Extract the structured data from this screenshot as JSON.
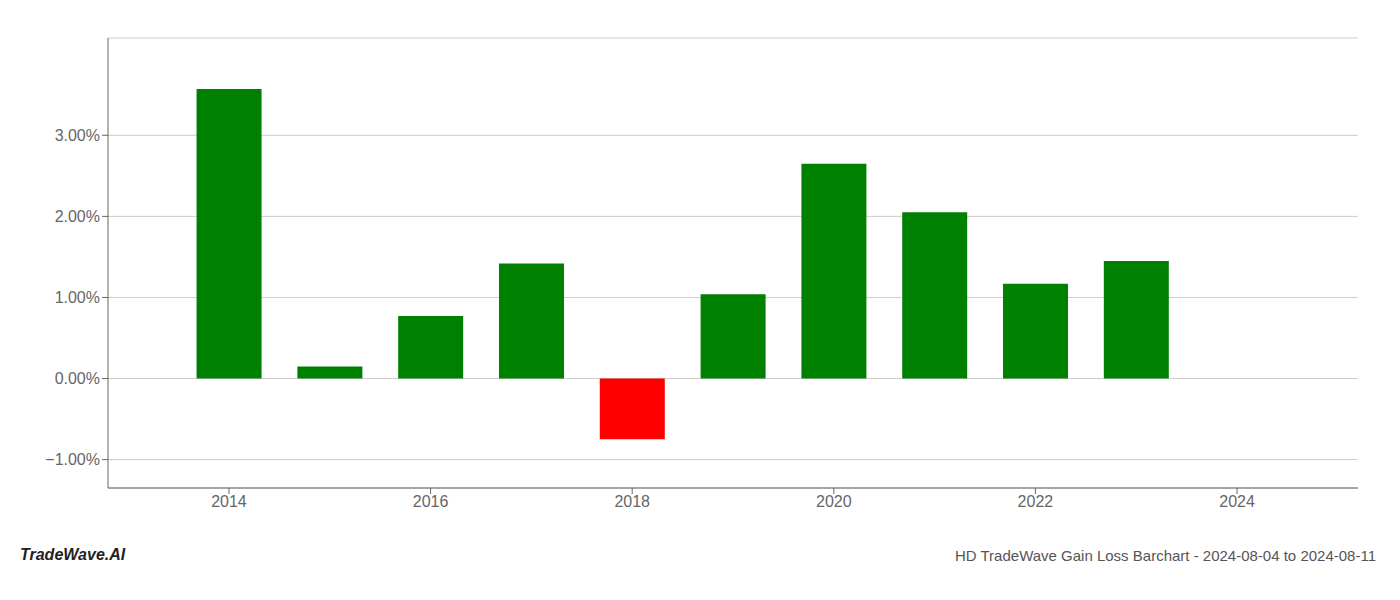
{
  "chart_data": {
    "type": "bar",
    "title": "HD TradeWave Gain Loss Barchart - 2024-08-04 to 2024-08-11",
    "annotations": [
      "TradeWave.AI"
    ],
    "x": [
      2014,
      2015,
      2016,
      2017,
      2018,
      2019,
      2020,
      2021,
      2022,
      2023
    ],
    "values": [
      3.57,
      0.15,
      0.77,
      1.42,
      -0.75,
      1.04,
      2.65,
      2.05,
      1.17,
      1.45
    ],
    "colors": [
      "#008000",
      "#008000",
      "#008000",
      "#008000",
      "#ff0000",
      "#008000",
      "#008000",
      "#008000",
      "#008000",
      "#008000"
    ],
    "xlim": [
      2012.8,
      2025.2
    ],
    "xticks": [
      2014,
      2016,
      2018,
      2020,
      2022,
      2024
    ],
    "ylim": [
      -1.35,
      4.2
    ],
    "yticks": [
      {
        "value": -1.0,
        "label": "−1.00%"
      },
      {
        "value": 0.0,
        "label": "0.00%"
      },
      {
        "value": 1.0,
        "label": "1.00%"
      },
      {
        "value": 2.0,
        "label": "2.00%"
      },
      {
        "value": 3.0,
        "label": "3.00%"
      }
    ],
    "grid": true
  }
}
